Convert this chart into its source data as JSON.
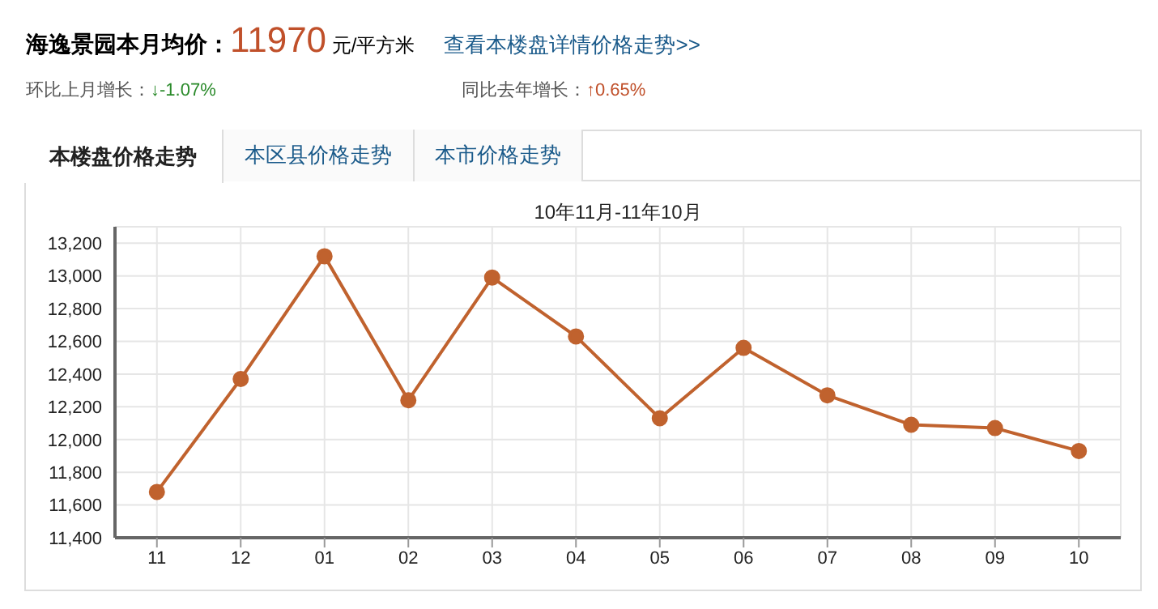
{
  "chart_data": {
    "type": "line",
    "title": "10年11月-11年10月",
    "annotations": [
      "海逸景园本月均价：",
      "11970",
      "元/平方米",
      "查看本楼盘详情价格走势>>",
      "环比上月增长：",
      "↓-1.07%",
      "同比去年增长：",
      "↑0.65%",
      "本楼盘价格走势",
      "本区县价格走势",
      "本市价格走势"
    ],
    "categories": [
      "11",
      "12",
      "01",
      "02",
      "03",
      "04",
      "05",
      "06",
      "07",
      "08",
      "09",
      "10"
    ],
    "series": [
      {
        "color": "#c0622e",
        "values": [
          11680,
          12370,
          13120,
          12240,
          12990,
          12630,
          12130,
          12560,
          12270,
          12090,
          12070,
          11930
        ]
      }
    ],
    "ylim": [
      11400,
      13300
    ],
    "yticks": [
      {
        "value": 11400,
        "label": "11,400"
      },
      {
        "value": 11600,
        "label": "11,600"
      },
      {
        "value": 11800,
        "label": "11,800"
      },
      {
        "value": 12000,
        "label": "12,000"
      },
      {
        "value": 12200,
        "label": "12,200"
      },
      {
        "value": 12400,
        "label": "12,400"
      },
      {
        "value": 12600,
        "label": "12,600"
      },
      {
        "value": 12800,
        "label": "12,800"
      },
      {
        "value": 13000,
        "label": "13,000"
      },
      {
        "value": 13200,
        "label": "13,200"
      }
    ],
    "grid": true,
    "marker": "circle",
    "line_style": "solid"
  }
}
